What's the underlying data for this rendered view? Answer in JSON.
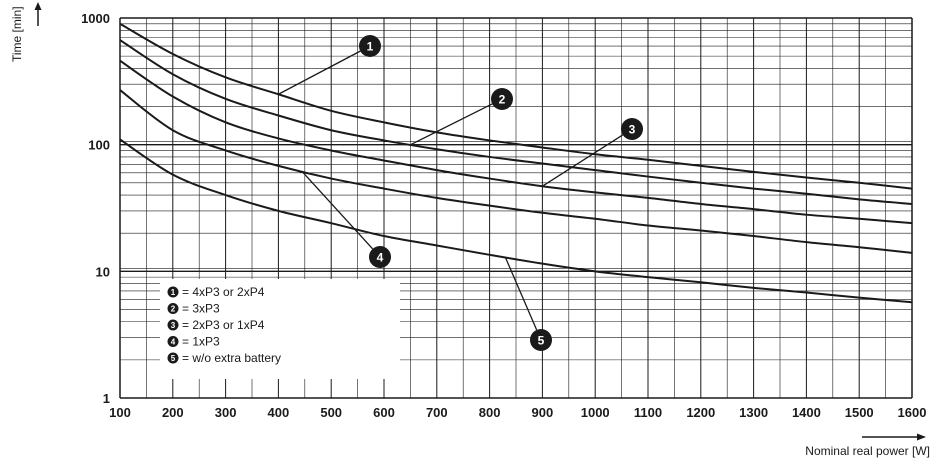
{
  "chart_data": {
    "type": "line",
    "xlabel": "Nominal real power [W]",
    "ylabel": "Time [min]",
    "x_scale": "linear",
    "y_scale": "log",
    "xlim": [
      100,
      1600
    ],
    "ylim": [
      1,
      1000
    ],
    "x_ticks": [
      "100",
      "200",
      "300",
      "400",
      "500",
      "600",
      "700",
      "800",
      "900",
      "1000",
      "1100",
      "1200",
      "1300",
      "1400",
      "1500",
      "1600"
    ],
    "y_ticks": [
      "1",
      "10",
      "100",
      "1000"
    ],
    "grid": true,
    "legend_position": "lower-left",
    "line_color": "#1a1a1a",
    "series": [
      {
        "marker": "1",
        "label": "= 4xP3 or 2xP4",
        "x": [
          100,
          200,
          300,
          400,
          500,
          600,
          700,
          800,
          900,
          1000,
          1100,
          1200,
          1300,
          1400,
          1500,
          1600
        ],
        "y": [
          900,
          520,
          340,
          250,
          185,
          150,
          125,
          108,
          95,
          84,
          76,
          68,
          61,
          55,
          50,
          45
        ]
      },
      {
        "marker": "2",
        "label": "= 3xP3",
        "x": [
          100,
          200,
          300,
          400,
          500,
          600,
          700,
          800,
          900,
          1000,
          1100,
          1200,
          1300,
          1400,
          1500,
          1600
        ],
        "y": [
          670,
          360,
          230,
          170,
          130,
          108,
          92,
          80,
          71,
          63,
          56,
          50,
          45,
          41,
          37,
          34
        ]
      },
      {
        "marker": "3",
        "label": "= 2xP3 or 1xP4",
        "x": [
          100,
          200,
          300,
          400,
          500,
          600,
          700,
          800,
          900,
          1000,
          1100,
          1200,
          1300,
          1400,
          1500,
          1600
        ],
        "y": [
          460,
          240,
          150,
          112,
          90,
          75,
          63,
          54,
          47,
          42,
          38,
          34,
          31,
          28,
          26,
          24
        ]
      },
      {
        "marker": "4",
        "label": "= 1xP3",
        "x": [
          100,
          200,
          300,
          400,
          500,
          600,
          700,
          800,
          900,
          1000,
          1100,
          1200,
          1300,
          1400,
          1500,
          1600
        ],
        "y": [
          270,
          130,
          90,
          68,
          54,
          45,
          38,
          33,
          29,
          26,
          23,
          21,
          19,
          17,
          15.5,
          14
        ]
      },
      {
        "marker": "5",
        "label": "= w/o extra battery",
        "x": [
          100,
          200,
          300,
          400,
          500,
          600,
          700,
          800,
          900,
          1000,
          1100,
          1200,
          1300,
          1400,
          1500,
          1600
        ],
        "y": [
          110,
          58,
          40,
          30,
          24,
          19,
          16,
          13.5,
          11.5,
          10,
          9,
          8.2,
          7.4,
          6.8,
          6.2,
          5.7
        ]
      }
    ]
  }
}
